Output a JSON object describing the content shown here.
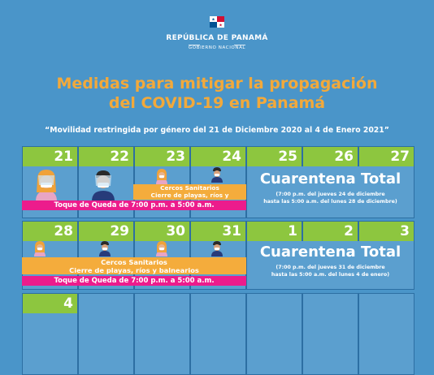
{
  "header": {
    "republic": "REPÚBLICA DE PANAMÁ",
    "government": "GOBIERNO NACIONAL",
    "flag_icon": "panama-flag-icon"
  },
  "title_line1": "Medidas para mitigar la propagación",
  "title_line2": "del COVID-19 en Panamá",
  "subtitle": "“Movilidad restringida por género del 21 de Diciembre 2020 al 4 de Enero 2021”",
  "colors": {
    "background": "#4a95c9",
    "day_header": "#8dc63f",
    "title": "#f2a93b",
    "curfew": "#ec1c8c",
    "sanitary": "#f4ac3c"
  },
  "week1": {
    "days": [
      "21",
      "22",
      "23",
      "24",
      "25",
      "26",
      "27"
    ],
    "sanitary_lines": [
      "Cercos Sanitarios",
      "Cierre de playas, ríos y balnearios"
    ],
    "curfew": "Toque de Queda de 7:00 p.m. a 5:00 a.m.",
    "lockdown_title": "Cuarentena Total",
    "lockdown_note1": "(7:00 p.m. del jueves 24 de diciembre",
    "lockdown_note2": "hasta las 5:00 a.m. del lunes 28 de diciembre)"
  },
  "week2": {
    "days": [
      "28",
      "29",
      "30",
      "31",
      "1",
      "2",
      "3"
    ],
    "sanitary_line1": "Cercos Sanitarios",
    "sanitary_line2": "Cierre de playas, ríos y balnearios",
    "curfew": "Toque de Queda de 7:00 p.m. a 5:00 a.m.",
    "lockdown_title": "Cuarentena Total",
    "lockdown_note1": "(7:00 p.m. del jueves 31 de diciembre",
    "lockdown_note2": "hasta las 5:00 a.m. del lunes 4 de enero)"
  },
  "week3": {
    "days": [
      "4"
    ]
  }
}
